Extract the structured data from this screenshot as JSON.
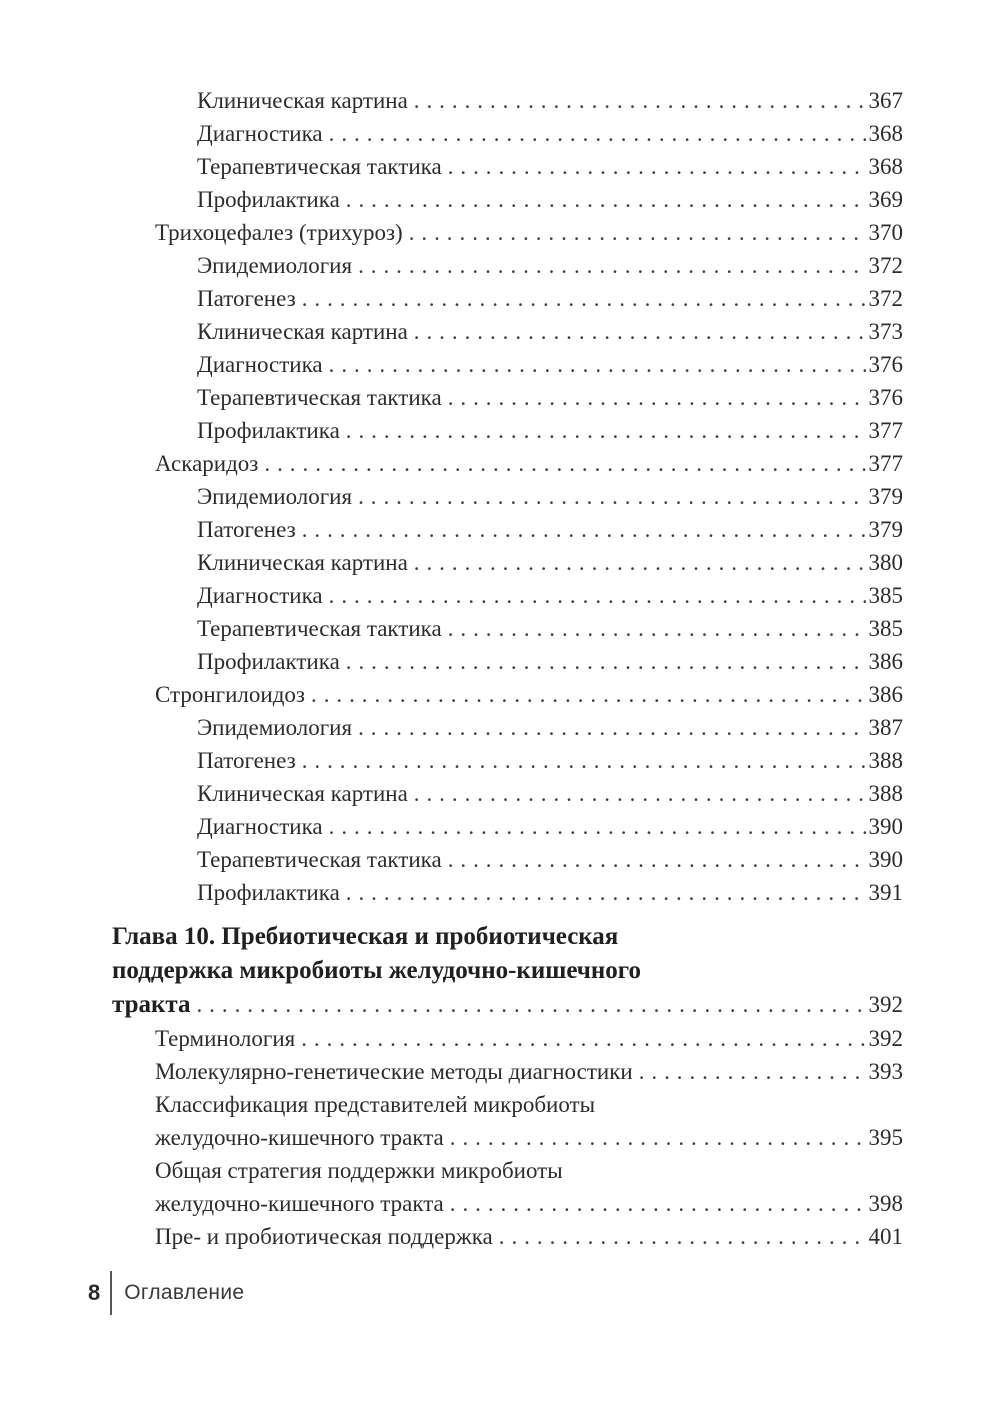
{
  "page": {
    "background_color": "#ffffff",
    "text_color": "#2e2c2a"
  },
  "toc": {
    "entries": [
      {
        "lines": [
          "Клиническая картина"
        ],
        "page": "367",
        "level": 2
      },
      {
        "lines": [
          "Диагностика"
        ],
        "page": "368",
        "level": 2
      },
      {
        "lines": [
          "Терапевтическая тактика"
        ],
        "page": "368",
        "level": 2
      },
      {
        "lines": [
          "Профилактика"
        ],
        "page": "369",
        "level": 2
      },
      {
        "lines": [
          "Трихоцефалез (трихуроз)"
        ],
        "page": "370",
        "level": 1
      },
      {
        "lines": [
          "Эпидемиология"
        ],
        "page": "372",
        "level": 2
      },
      {
        "lines": [
          "Патогенез"
        ],
        "page": "372",
        "level": 2
      },
      {
        "lines": [
          "Клиническая картина"
        ],
        "page": "373",
        "level": 2
      },
      {
        "lines": [
          "Диагностика"
        ],
        "page": "376",
        "level": 2
      },
      {
        "lines": [
          "Терапевтическая тактика"
        ],
        "page": "376",
        "level": 2
      },
      {
        "lines": [
          "Профилактика"
        ],
        "page": "377",
        "level": 2
      },
      {
        "lines": [
          "Аскаридоз"
        ],
        "page": "377",
        "level": 1
      },
      {
        "lines": [
          "Эпидемиология"
        ],
        "page": "379",
        "level": 2
      },
      {
        "lines": [
          "Патогенез"
        ],
        "page": "379",
        "level": 2
      },
      {
        "lines": [
          "Клиническая картина"
        ],
        "page": "380",
        "level": 2
      },
      {
        "lines": [
          "Диагностика"
        ],
        "page": "385",
        "level": 2
      },
      {
        "lines": [
          "Терапевтическая тактика"
        ],
        "page": "385",
        "level": 2
      },
      {
        "lines": [
          "Профилактика"
        ],
        "page": "386",
        "level": 2
      },
      {
        "lines": [
          "Стронгилоидоз"
        ],
        "page": "386",
        "level": 1
      },
      {
        "lines": [
          "Эпидемиология"
        ],
        "page": "387",
        "level": 2
      },
      {
        "lines": [
          "Патогенез"
        ],
        "page": "388",
        "level": 2
      },
      {
        "lines": [
          "Клиническая картина"
        ],
        "page": "388",
        "level": 2
      },
      {
        "lines": [
          "Диагностика"
        ],
        "page": "390",
        "level": 2
      },
      {
        "lines": [
          "Терапевтическая тактика"
        ],
        "page": "390",
        "level": 2
      },
      {
        "lines": [
          "Профилактика"
        ],
        "page": "391",
        "level": 2
      },
      {
        "lines": [
          "Глава 10. Пребиотическая и пробиотическая",
          "поддержка микробиоты желудочно-кишечного",
          "тракта"
        ],
        "page": "392",
        "level": 0,
        "chapter": true
      },
      {
        "lines": [
          "Терминология"
        ],
        "page": "392",
        "level": 1
      },
      {
        "lines": [
          "Молекулярно-генетические методы диагностики"
        ],
        "page": "393",
        "level": 1
      },
      {
        "lines": [
          "Классификация представителей микробиоты",
          "желудочно-кишечного тракта"
        ],
        "page": "395",
        "level": 1
      },
      {
        "lines": [
          "Общая стратегия поддержки микробиоты",
          "желудочно-кишечного тракта"
        ],
        "page": "398",
        "level": 1
      },
      {
        "lines": [
          "Пре- и пробиотическая поддержка"
        ],
        "page": "401",
        "level": 1
      }
    ]
  },
  "footer": {
    "page_number": "8",
    "section_label": "Оглавление"
  }
}
